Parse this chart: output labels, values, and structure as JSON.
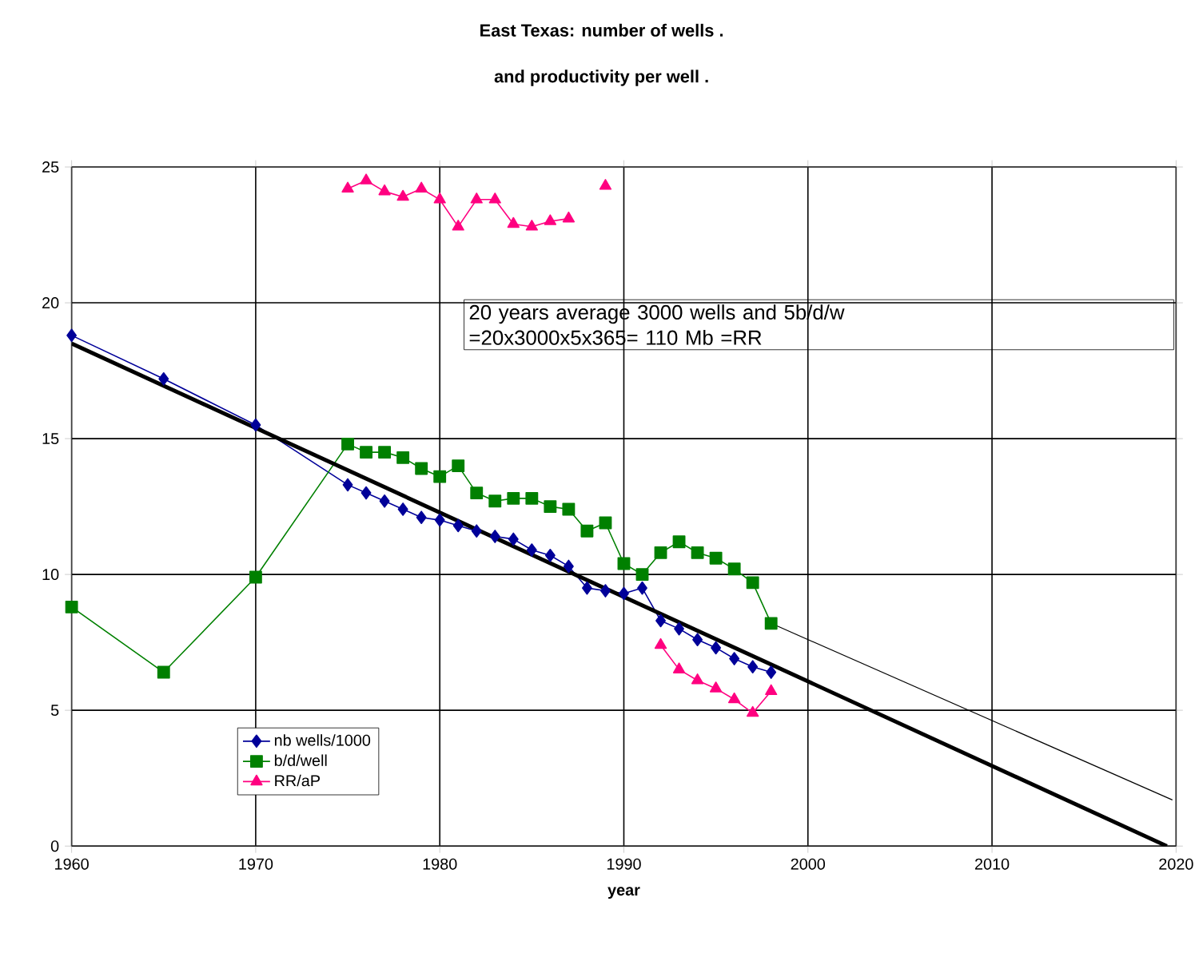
{
  "chart_data": {
    "type": "line",
    "title": "East Texas: number of wells .",
    "subtitle": "and productivity per well .",
    "xlabel": "year",
    "x": [
      1960,
      1965,
      1970,
      1975,
      1976,
      1977,
      1978,
      1979,
      1980,
      1981,
      1982,
      1983,
      1984,
      1985,
      1986,
      1987,
      1988,
      1989,
      1990,
      1991,
      1992,
      1993,
      1994,
      1995,
      1996,
      1997,
      1998
    ],
    "series": [
      {
        "name": "nb wells/1000",
        "color": "#000099",
        "marker": "diamond",
        "values": [
          18.8,
          17.2,
          15.5,
          13.3,
          13.0,
          12.7,
          12.4,
          12.1,
          12.0,
          11.8,
          11.6,
          11.4,
          11.3,
          10.9,
          10.7,
          10.3,
          9.5,
          9.4,
          9.3,
          9.5,
          8.3,
          8.0,
          7.6,
          7.3,
          6.9,
          6.6,
          6.4
        ]
      },
      {
        "name": "b/d/well",
        "color": "#008000",
        "marker": "square",
        "values": [
          8.8,
          6.4,
          9.9,
          14.8,
          14.5,
          14.5,
          14.3,
          13.9,
          13.6,
          14.0,
          13.0,
          12.7,
          12.8,
          12.8,
          12.5,
          12.4,
          11.6,
          11.9,
          10.4,
          10.0,
          10.8,
          11.2,
          10.8,
          10.6,
          10.2,
          9.7,
          8.2
        ]
      },
      {
        "name": "RR/aP",
        "color": "#ff0080",
        "marker": "triangle",
        "values": [
          null,
          null,
          null,
          24.2,
          24.5,
          24.1,
          23.9,
          24.2,
          23.8,
          22.8,
          23.8,
          23.8,
          22.9,
          22.8,
          23.0,
          23.1,
          null,
          24.3,
          null,
          null,
          7.4,
          6.5,
          6.1,
          5.8,
          5.4,
          4.9,
          5.7
        ]
      },
      {
        "type": "line",
        "color": "#000000",
        "marker": "none",
        "x": [
          1960,
          2019.5
        ],
        "values": [
          18.5,
          0
        ]
      },
      {
        "type": "line",
        "color": "#000000",
        "marker": "none",
        "x": [
          1998,
          2019.8
        ],
        "values": [
          8.2,
          1.7
        ]
      }
    ],
    "xlim": [
      1960,
      2020
    ],
    "ylim": [
      0,
      25
    ],
    "xticks": [
      1960,
      1970,
      1980,
      1990,
      2000,
      2010,
      2020
    ],
    "yticks": [
      0,
      5,
      10,
      15,
      20,
      25
    ],
    "grid": true,
    "legend": "bottom left",
    "annotations": [
      "20 years average 3000 wells and 5b/d/w\n=20x3000x5x365= 110 Mb =RR"
    ]
  }
}
